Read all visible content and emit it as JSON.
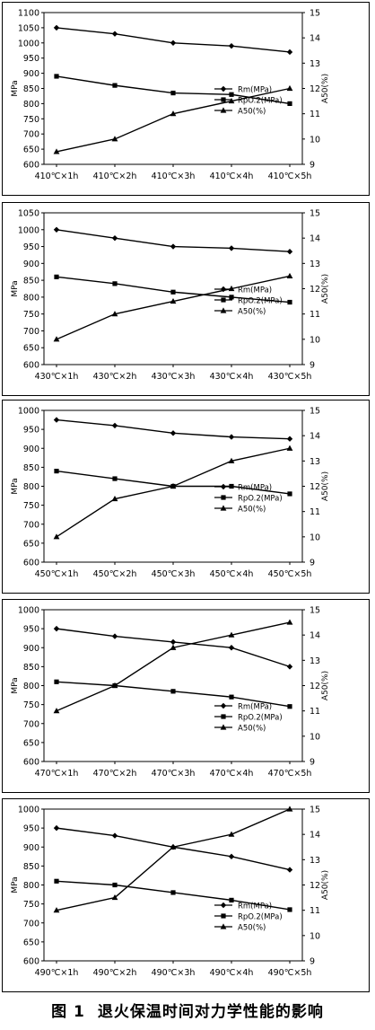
{
  "caption": {
    "figure_no": "图 1",
    "text": "退火保温时间对力学性能的影响"
  },
  "chart_data": [
    {
      "type": "line",
      "categories": [
        "410℃×1h",
        "410℃×2h",
        "410℃×3h",
        "410℃×4h",
        "410℃×5h"
      ],
      "ylabel": "MPa",
      "y2label": "A50(%)",
      "ylim": [
        600,
        1100
      ],
      "ystep": 50,
      "y2lim": [
        9,
        15
      ],
      "y2step": 1,
      "legend_position": "right-middle",
      "series": [
        {
          "name": "Rm(MPa)",
          "axis": "left",
          "marker": "diamond",
          "values": [
            1050,
            1030,
            1000,
            990,
            970
          ]
        },
        {
          "name": "RpO.2(MPa)",
          "axis": "left",
          "marker": "square",
          "values": [
            890,
            860,
            835,
            830,
            800
          ]
        },
        {
          "name": "A50(%)",
          "axis": "right",
          "marker": "triangle",
          "values": [
            9.5,
            10,
            11,
            11.5,
            12
          ]
        }
      ]
    },
    {
      "type": "line",
      "categories": [
        "430℃×1h",
        "430℃×2h",
        "430℃×3h",
        "430℃×4h",
        "430℃×5h"
      ],
      "ylabel": "MPa",
      "y2label": "A50(%)",
      "ylim": [
        600,
        1050
      ],
      "ystep": 50,
      "y2lim": [
        9,
        15
      ],
      "y2step": 1,
      "legend_position": "right-middle",
      "series": [
        {
          "name": "Rm(MPa)",
          "axis": "left",
          "marker": "diamond",
          "values": [
            1000,
            975,
            950,
            945,
            935
          ]
        },
        {
          "name": "RpO.2(MPa)",
          "axis": "left",
          "marker": "square",
          "values": [
            860,
            840,
            815,
            800,
            785
          ]
        },
        {
          "name": "A50(%)",
          "axis": "right",
          "marker": "triangle",
          "values": [
            10,
            11,
            11.5,
            12,
            12.5
          ]
        }
      ]
    },
    {
      "type": "line",
      "categories": [
        "450℃×1h",
        "450℃×2h",
        "450℃×3h",
        "450℃×4h",
        "450℃×5h"
      ],
      "ylabel": "MPa",
      "y2label": "A50(%)",
      "ylim": [
        600,
        1000
      ],
      "ystep": 50,
      "y2lim": [
        9,
        15
      ],
      "y2step": 1,
      "legend_position": "right-middle",
      "series": [
        {
          "name": "Rm(MPa)",
          "axis": "left",
          "marker": "diamond",
          "values": [
            975,
            960,
            940,
            930,
            925
          ]
        },
        {
          "name": "RpO.2(MPa)",
          "axis": "left",
          "marker": "square",
          "values": [
            840,
            820,
            800,
            800,
            780
          ]
        },
        {
          "name": "A50(%)",
          "axis": "right",
          "marker": "triangle",
          "values": [
            10,
            11.5,
            12,
            13,
            13.5
          ]
        }
      ]
    },
    {
      "type": "line",
      "categories": [
        "470℃×1h",
        "470℃×2h",
        "470℃×3h",
        "470℃×4h",
        "470℃×5h"
      ],
      "ylabel": "MPa",
      "y2label": "A50(%)",
      "ylim": [
        600,
        1000
      ],
      "ystep": 50,
      "y2lim": [
        9,
        15
      ],
      "y2step": 1,
      "legend_position": "right-bottom",
      "series": [
        {
          "name": "Rm(MPa)",
          "axis": "left",
          "marker": "diamond",
          "values": [
            950,
            930,
            915,
            900,
            850
          ]
        },
        {
          "name": "RpO.2(MPa)",
          "axis": "left",
          "marker": "square",
          "values": [
            810,
            800,
            785,
            770,
            745
          ]
        },
        {
          "name": "A50(%)",
          "axis": "right",
          "marker": "triangle",
          "values": [
            11,
            12,
            13.5,
            14,
            14.5
          ]
        }
      ]
    },
    {
      "type": "line",
      "categories": [
        "490℃×1h",
        "490℃×2h",
        "490℃×3h",
        "490℃×4h",
        "490℃×5h"
      ],
      "ylabel": "MPa",
      "y2label": "A50(%)",
      "ylim": [
        600,
        1000
      ],
      "ystep": 50,
      "y2lim": [
        9,
        15
      ],
      "y2step": 1,
      "legend_position": "right-bottom",
      "series": [
        {
          "name": "Rm(MPa)",
          "axis": "left",
          "marker": "diamond",
          "values": [
            950,
            930,
            900,
            875,
            840
          ]
        },
        {
          "name": "RpO.2(MPa)",
          "axis": "left",
          "marker": "square",
          "values": [
            810,
            800,
            780,
            760,
            735
          ]
        },
        {
          "name": "A50(%)",
          "axis": "right",
          "marker": "triangle",
          "values": [
            11,
            11.5,
            13.5,
            14,
            15
          ]
        }
      ]
    }
  ]
}
